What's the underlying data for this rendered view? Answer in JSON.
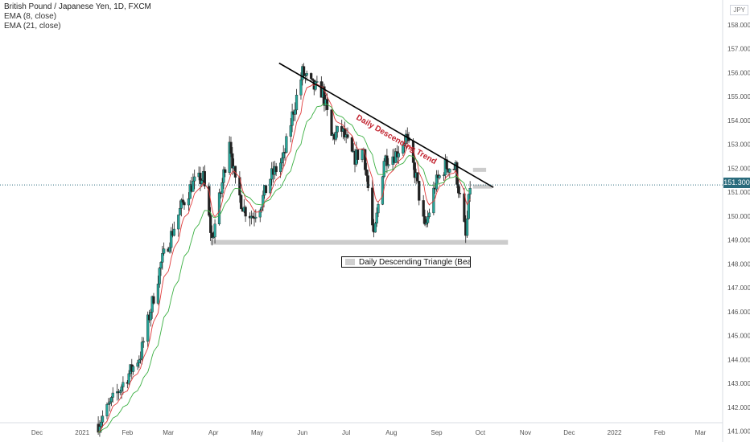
{
  "header": {
    "symbol_title": "British Pound / Japanese Yen, 1D, FXCM",
    "indicators": [
      "EMA (8, close)",
      "EMA (21, close)"
    ]
  },
  "currency_badge": "JPY",
  "current_price_label": "151.300",
  "annotations": {
    "trend_label": "Daily Descending Trend",
    "pattern_label": "Daily Descending Triangle (Bearish"
  },
  "colors": {
    "up_candle": "#26a69a",
    "down_candle": "#222222",
    "ema_fast": "#e03a3a",
    "ema_slow": "#3cb043",
    "trendline": "#000000",
    "support_zone": "#cccccc",
    "current_price_line": "#2a6b7c",
    "trend_label": "#c2232f"
  },
  "chart_data": {
    "type": "candlestick",
    "title": "British Pound / Japanese Yen, 1D, FXCM",
    "x_ticks": [
      "Dec",
      "2021",
      "Feb",
      "Mar",
      "Apr",
      "May",
      "Jun",
      "Jul",
      "Aug",
      "Sep",
      "Oct",
      "Nov",
      "Dec",
      "2022",
      "Feb",
      "Mar"
    ],
    "y_ticks": [
      "141.000",
      "142.000",
      "143.000",
      "144.000",
      "145.000",
      "146.000",
      "147.000",
      "148.000",
      "149.000",
      "150.000",
      "151.000",
      "152.000",
      "153.000",
      "154.000",
      "155.000",
      "156.000",
      "157.000",
      "158.000"
    ],
    "y_range": [
      141,
      158
    ],
    "current_price": 151.3,
    "series": [
      {
        "name": "EMA (8, close)"
      },
      {
        "name": "EMA (21, close)"
      }
    ],
    "price_path": [
      [
        "2021-01-12",
        141.3
      ],
      [
        "2021-01-28",
        142.9
      ],
      [
        "2021-02-10",
        144.2
      ],
      [
        "2021-02-24",
        148.0
      ],
      [
        "2021-03-10",
        150.4
      ],
      [
        "2021-03-17",
        151.3
      ],
      [
        "2021-03-25",
        151.6
      ],
      [
        "2021-03-31",
        149.0
      ],
      [
        "2021-04-06",
        151.0
      ],
      [
        "2021-04-12",
        153.3
      ],
      [
        "2021-04-16",
        151.3
      ],
      [
        "2021-04-22",
        150.3
      ],
      [
        "2021-04-28",
        150.0
      ],
      [
        "2021-05-04",
        150.6
      ],
      [
        "2021-05-10",
        151.6
      ],
      [
        "2021-05-19",
        152.4
      ],
      [
        "2021-05-25",
        154.2
      ],
      [
        "2021-06-01",
        156.0
      ],
      [
        "2021-06-08",
        155.4
      ],
      [
        "2021-06-15",
        155.2
      ],
      [
        "2021-06-21",
        153.3
      ],
      [
        "2021-06-28",
        153.6
      ],
      [
        "2021-07-06",
        152.4
      ],
      [
        "2021-07-13",
        152.8
      ],
      [
        "2021-07-20",
        149.0
      ],
      [
        "2021-07-27",
        152.4
      ],
      [
        "2021-08-04",
        152.6
      ],
      [
        "2021-08-11",
        153.3
      ],
      [
        "2021-08-18",
        151.6
      ],
      [
        "2021-08-24",
        149.4
      ],
      [
        "2021-08-31",
        151.3
      ],
      [
        "2021-09-07",
        152.1
      ],
      [
        "2021-09-14",
        152.0
      ],
      [
        "2021-09-21",
        149.1
      ],
      [
        "2021-09-24",
        151.3
      ]
    ],
    "trendline": {
      "start": [
        "2021-05-16",
        156.4
      ],
      "end": [
        "2021-10-10",
        151.2
      ]
    },
    "support_zone": {
      "from": "2021-03-30",
      "to": "2021-10-20",
      "low": 148.85,
      "high": 149.0
    },
    "resistance_zones": [
      {
        "from": "2021-09-26",
        "to": "2021-10-05",
        "low": 151.85,
        "high": 151.95
      },
      {
        "from": "2021-09-26",
        "to": "2021-10-09",
        "low": 151.15,
        "high": 151.25
      }
    ],
    "grid": false,
    "legend": "top-left"
  }
}
